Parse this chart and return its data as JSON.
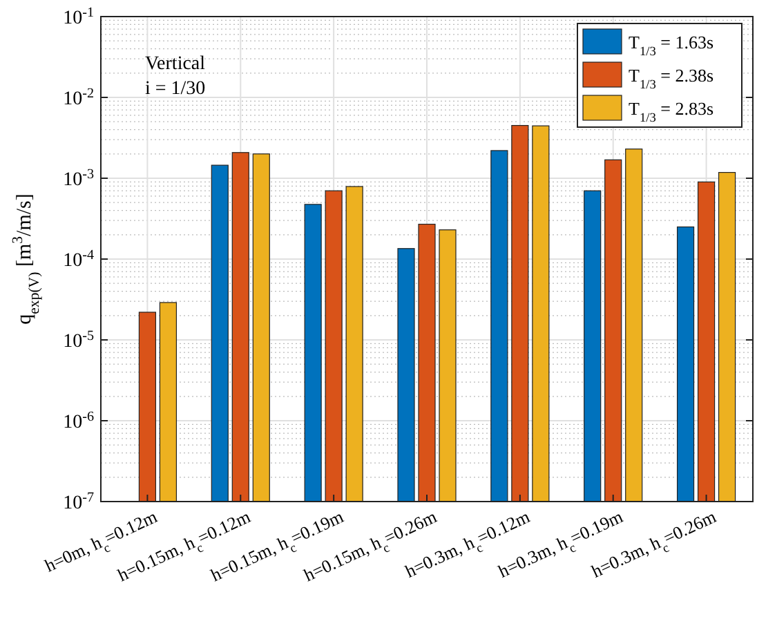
{
  "chart_data": {
    "type": "bar",
    "ylabel": "q$_{exp(V)}$ [m$^{3}$/m/s]",
    "categories": [
      "h=0m,  h$_{c}$=0.12m",
      "h=0.15m,  h$_{c}$=0.12m",
      "h=0.15m,  h$_{c}$=0.19m",
      "h=0.15m,  h$_{c}$=0.26m",
      "h=0.3m,  h$_{c}$=0.12m",
      "h=0.3m,  h$_{c}$=0.19m",
      "h=0.3m,  h$_{c}$=0.26m"
    ],
    "series": [
      {
        "name": "T$_{1/3}$ = 1.63s",
        "color": "#0072bd",
        "values": [
          null,
          0.00145,
          0.000475,
          0.000135,
          0.0022,
          0.0007,
          0.00025
        ]
      },
      {
        "name": "T$_{1/3}$ = 2.38s",
        "color": "#d95319",
        "values": [
          2.2e-05,
          0.00208,
          0.0007,
          0.00027,
          0.0045,
          0.00169,
          0.0009
        ]
      },
      {
        "name": "T$_{1/3}$ = 2.83s",
        "color": "#edb120",
        "values": [
          2.9e-05,
          0.002,
          0.00079,
          0.00023,
          0.00445,
          0.0023,
          0.00118
        ]
      }
    ],
    "log": true,
    "ylim": [
      1e-07,
      0.1
    ],
    "yticks": [
      {
        "value": 1e-07,
        "label": "10$^{-7}$"
      },
      {
        "value": 1e-06,
        "label": "10$^{-6}$"
      },
      {
        "value": 1e-05,
        "label": "10$^{-5}$"
      },
      {
        "value": 0.0001,
        "label": "10$^{-4}$"
      },
      {
        "value": 0.001,
        "label": "10$^{-3}$"
      },
      {
        "value": 0.01,
        "label": "10$^{-2}$"
      },
      {
        "value": 0.1,
        "label": "10$^{-1}$"
      }
    ],
    "grid": true,
    "legend": "top right",
    "annotations": [
      "Vertical",
      "i = 1/30"
    ]
  }
}
